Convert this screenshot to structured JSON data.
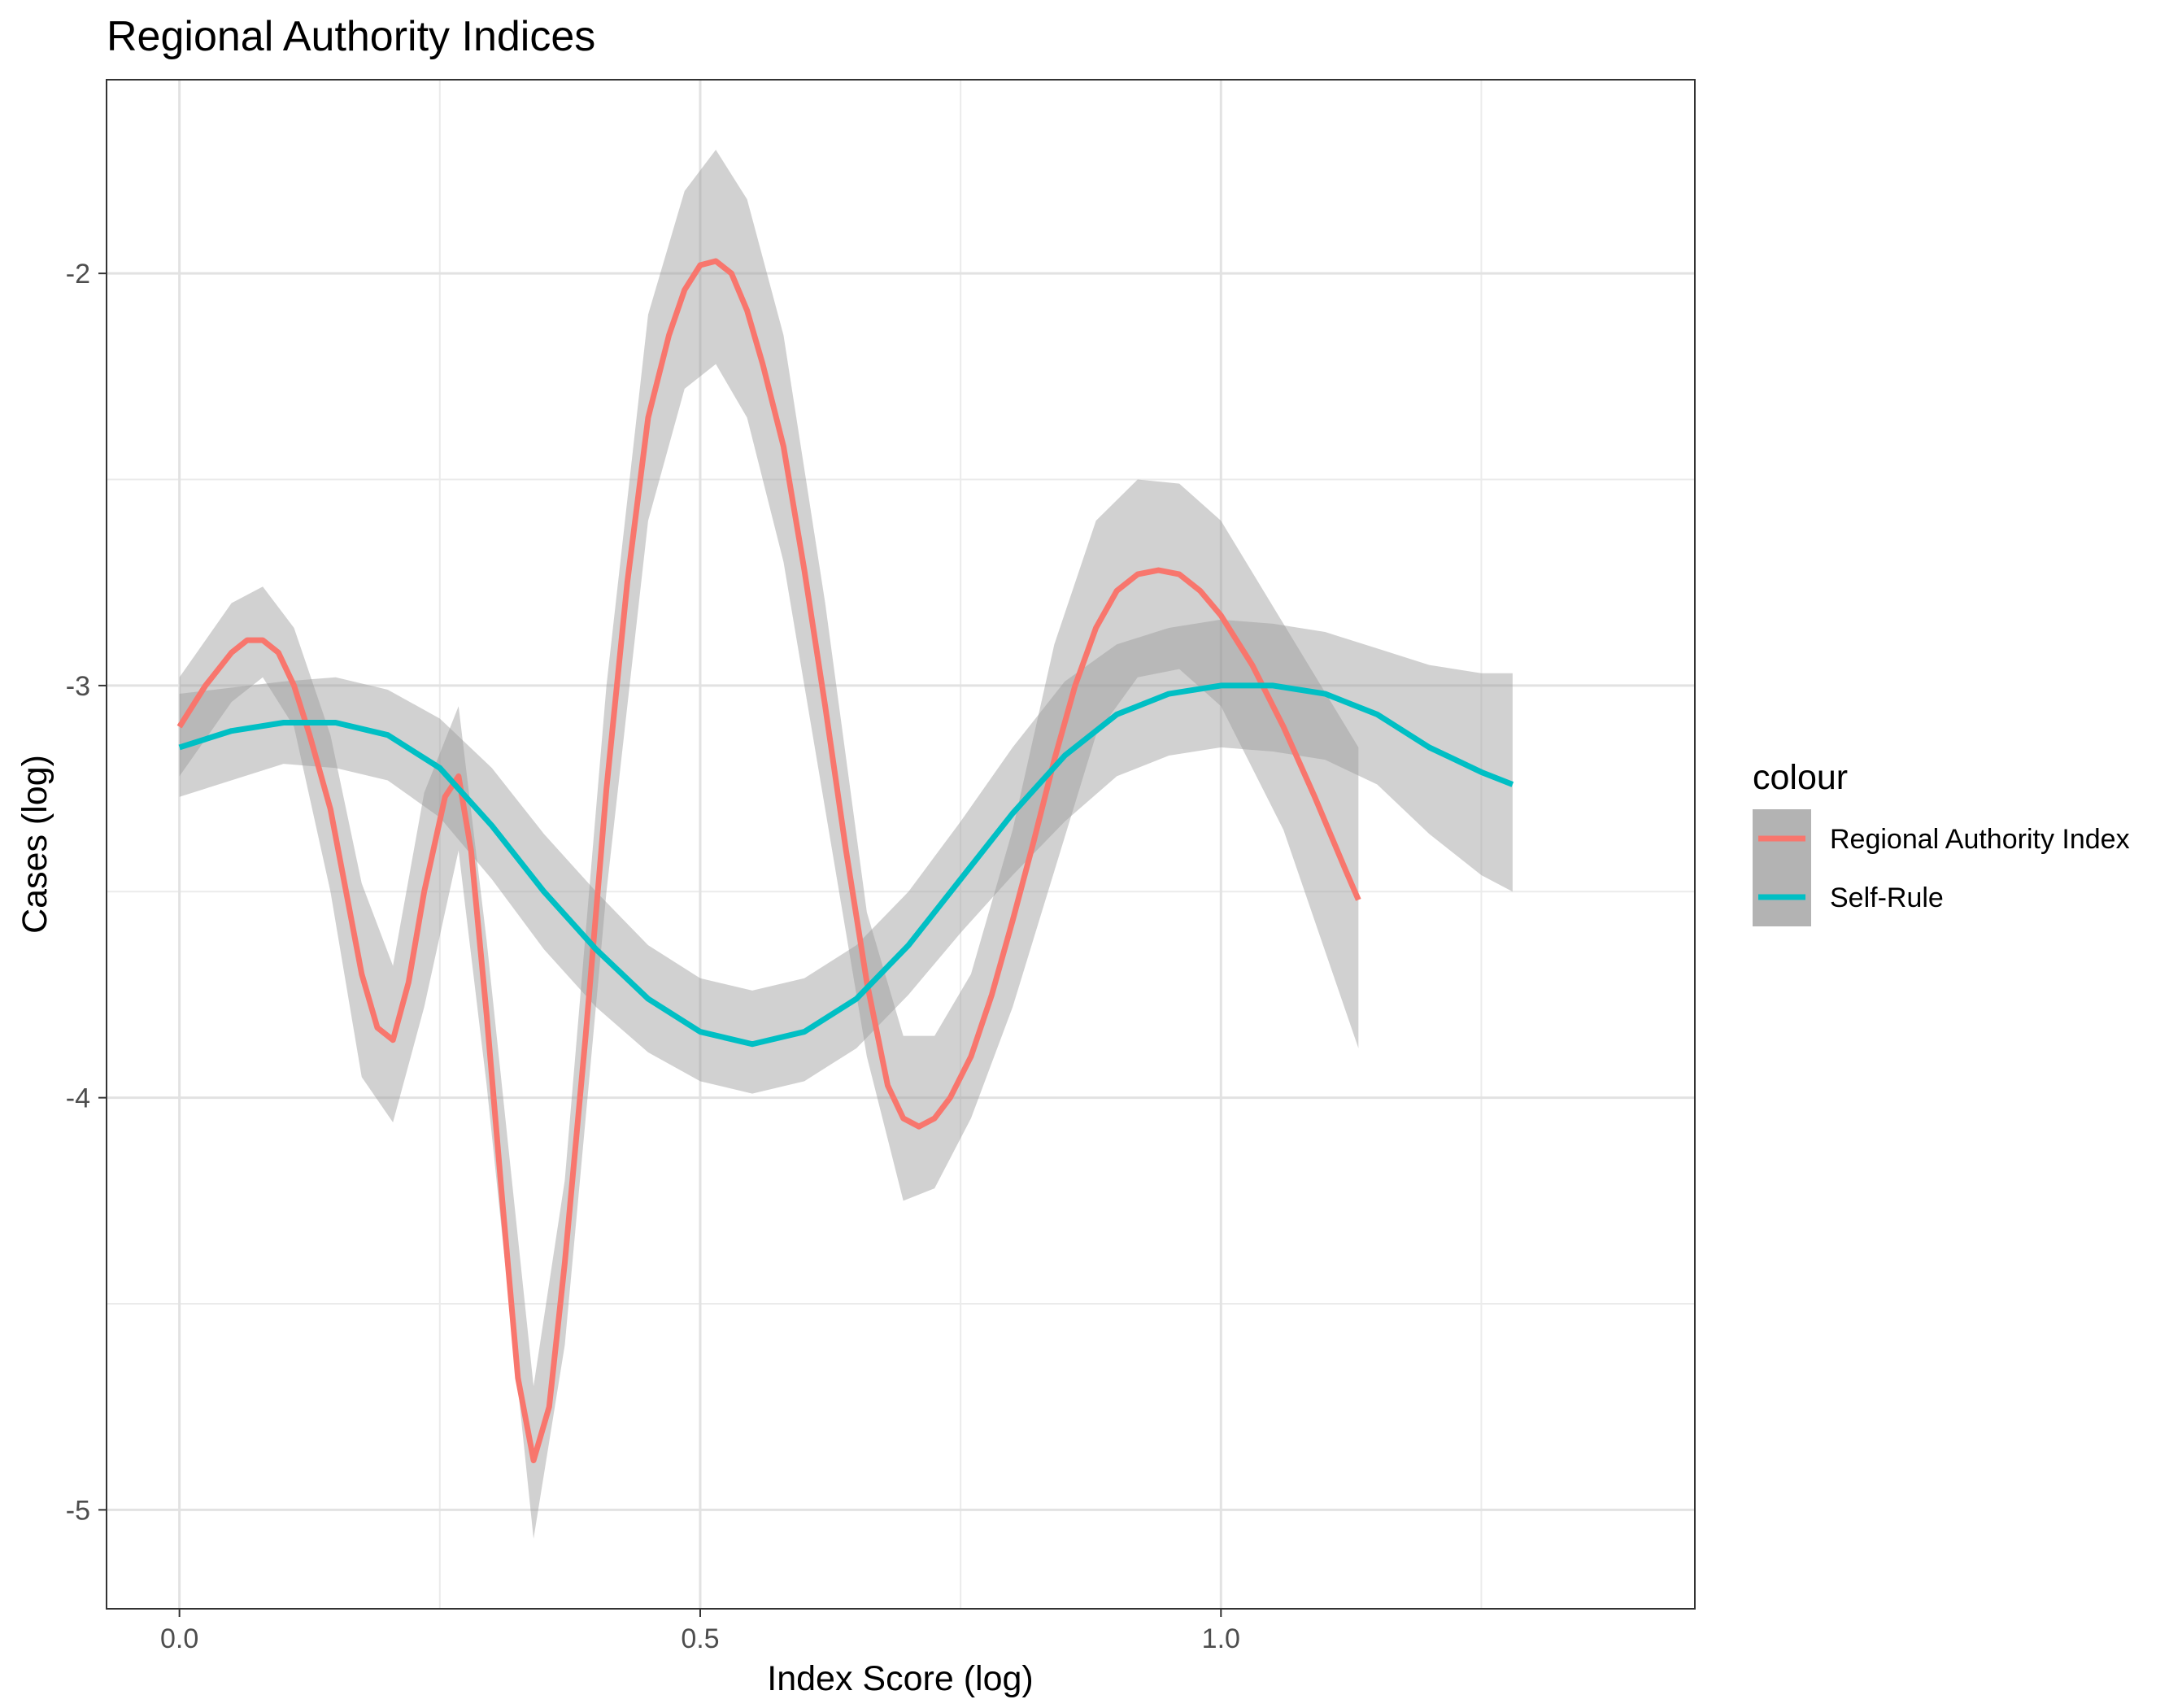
{
  "chart_data": {
    "type": "line",
    "title": "Regional Authority Indices",
    "xlabel": "Index Score (log)",
    "ylabel": "Cases (log)",
    "xlim": [
      -0.07,
      1.455
    ],
    "ylim": [
      -5.24,
      -1.53
    ],
    "x_ticks": [
      0.0,
      0.5,
      1.0
    ],
    "x_tick_labels": [
      "0.0",
      "0.5",
      "1.0"
    ],
    "y_ticks": [
      -5,
      -4,
      -3,
      -2
    ],
    "y_tick_labels": [
      "-5",
      "-4",
      "-3",
      "-2"
    ],
    "grid": true,
    "legend": {
      "title": "colour",
      "position": "right"
    },
    "series": [
      {
        "name": "Regional Authority Index",
        "color": "#F8766D",
        "points": [
          [
            0.0,
            -3.1
          ],
          [
            0.025,
            -3.0
          ],
          [
            0.05,
            -2.92
          ],
          [
            0.065,
            -2.89
          ],
          [
            0.08,
            -2.89
          ],
          [
            0.095,
            -2.92
          ],
          [
            0.11,
            -3.0
          ],
          [
            0.125,
            -3.12
          ],
          [
            0.145,
            -3.3
          ],
          [
            0.16,
            -3.5
          ],
          [
            0.175,
            -3.7
          ],
          [
            0.19,
            -3.83
          ],
          [
            0.205,
            -3.86
          ],
          [
            0.22,
            -3.72
          ],
          [
            0.235,
            -3.5
          ],
          [
            0.255,
            -3.27
          ],
          [
            0.268,
            -3.22
          ],
          [
            0.28,
            -3.4
          ],
          [
            0.295,
            -3.8
          ],
          [
            0.31,
            -4.25
          ],
          [
            0.325,
            -4.68
          ],
          [
            0.34,
            -4.88
          ],
          [
            0.355,
            -4.75
          ],
          [
            0.37,
            -4.4
          ],
          [
            0.39,
            -3.85
          ],
          [
            0.41,
            -3.25
          ],
          [
            0.43,
            -2.75
          ],
          [
            0.45,
            -2.35
          ],
          [
            0.47,
            -2.15
          ],
          [
            0.485,
            -2.04
          ],
          [
            0.5,
            -1.98
          ],
          [
            0.515,
            -1.97
          ],
          [
            0.53,
            -2.0
          ],
          [
            0.545,
            -2.09
          ],
          [
            0.56,
            -2.22
          ],
          [
            0.58,
            -2.42
          ],
          [
            0.6,
            -2.72
          ],
          [
            0.62,
            -3.05
          ],
          [
            0.64,
            -3.4
          ],
          [
            0.66,
            -3.72
          ],
          [
            0.68,
            -3.97
          ],
          [
            0.695,
            -4.05
          ],
          [
            0.71,
            -4.07
          ],
          [
            0.725,
            -4.05
          ],
          [
            0.74,
            -4.0
          ],
          [
            0.76,
            -3.9
          ],
          [
            0.78,
            -3.75
          ],
          [
            0.8,
            -3.57
          ],
          [
            0.82,
            -3.38
          ],
          [
            0.84,
            -3.18
          ],
          [
            0.86,
            -3.0
          ],
          [
            0.88,
            -2.86
          ],
          [
            0.9,
            -2.77
          ],
          [
            0.92,
            -2.73
          ],
          [
            0.94,
            -2.72
          ],
          [
            0.96,
            -2.73
          ],
          [
            0.98,
            -2.77
          ],
          [
            1.0,
            -2.83
          ],
          [
            1.03,
            -2.95
          ],
          [
            1.06,
            -3.1
          ],
          [
            1.09,
            -3.27
          ],
          [
            1.12,
            -3.45
          ],
          [
            1.132,
            -3.52
          ]
        ],
        "band": [
          [
            0.0,
            -3.22,
            -2.98
          ],
          [
            0.05,
            -3.04,
            -2.8
          ],
          [
            0.08,
            -2.98,
            -2.76
          ],
          [
            0.11,
            -3.1,
            -2.86
          ],
          [
            0.145,
            -3.5,
            -3.12
          ],
          [
            0.175,
            -3.95,
            -3.48
          ],
          [
            0.205,
            -4.06,
            -3.68
          ],
          [
            0.235,
            -3.78,
            -3.26
          ],
          [
            0.268,
            -3.4,
            -3.05
          ],
          [
            0.295,
            -3.97,
            -3.62
          ],
          [
            0.34,
            -5.07,
            -4.7
          ],
          [
            0.37,
            -4.6,
            -4.2
          ],
          [
            0.41,
            -3.5,
            -3.0
          ],
          [
            0.45,
            -2.6,
            -2.1
          ],
          [
            0.485,
            -2.28,
            -1.8
          ],
          [
            0.515,
            -2.22,
            -1.7
          ],
          [
            0.545,
            -2.35,
            -1.82
          ],
          [
            0.58,
            -2.7,
            -2.15
          ],
          [
            0.62,
            -3.3,
            -2.8
          ],
          [
            0.66,
            -3.9,
            -3.55
          ],
          [
            0.695,
            -4.25,
            -3.85
          ],
          [
            0.725,
            -4.22,
            -3.85
          ],
          [
            0.76,
            -4.05,
            -3.7
          ],
          [
            0.8,
            -3.78,
            -3.35
          ],
          [
            0.84,
            -3.45,
            -2.9
          ],
          [
            0.88,
            -3.12,
            -2.6
          ],
          [
            0.92,
            -2.98,
            -2.5
          ],
          [
            0.96,
            -2.96,
            -2.51
          ],
          [
            1.0,
            -3.05,
            -2.6
          ],
          [
            1.06,
            -3.35,
            -2.85
          ],
          [
            1.132,
            -3.88,
            -3.15
          ]
        ]
      },
      {
        "name": "Self-Rule",
        "color": "#00BFC4",
        "points": [
          [
            0.0,
            -3.15
          ],
          [
            0.05,
            -3.11
          ],
          [
            0.1,
            -3.09
          ],
          [
            0.15,
            -3.09
          ],
          [
            0.2,
            -3.12
          ],
          [
            0.25,
            -3.2
          ],
          [
            0.3,
            -3.34
          ],
          [
            0.35,
            -3.5
          ],
          [
            0.4,
            -3.64
          ],
          [
            0.45,
            -3.76
          ],
          [
            0.5,
            -3.84
          ],
          [
            0.55,
            -3.87
          ],
          [
            0.6,
            -3.84
          ],
          [
            0.65,
            -3.76
          ],
          [
            0.7,
            -3.63
          ],
          [
            0.75,
            -3.47
          ],
          [
            0.8,
            -3.31
          ],
          [
            0.85,
            -3.17
          ],
          [
            0.9,
            -3.07
          ],
          [
            0.95,
            -3.02
          ],
          [
            1.0,
            -3.0
          ],
          [
            1.05,
            -3.0
          ],
          [
            1.1,
            -3.02
          ],
          [
            1.15,
            -3.07
          ],
          [
            1.2,
            -3.15
          ],
          [
            1.25,
            -3.21
          ],
          [
            1.28,
            -3.24
          ]
        ],
        "band": [
          [
            0.0,
            -3.27,
            -3.02
          ],
          [
            0.1,
            -3.19,
            -2.99
          ],
          [
            0.15,
            -3.2,
            -2.98
          ],
          [
            0.2,
            -3.23,
            -3.01
          ],
          [
            0.25,
            -3.32,
            -3.08
          ],
          [
            0.3,
            -3.47,
            -3.2
          ],
          [
            0.35,
            -3.64,
            -3.36
          ],
          [
            0.4,
            -3.78,
            -3.5
          ],
          [
            0.45,
            -3.89,
            -3.63
          ],
          [
            0.5,
            -3.96,
            -3.71
          ],
          [
            0.55,
            -3.99,
            -3.74
          ],
          [
            0.6,
            -3.96,
            -3.71
          ],
          [
            0.65,
            -3.88,
            -3.63
          ],
          [
            0.7,
            -3.75,
            -3.5
          ],
          [
            0.75,
            -3.6,
            -3.33
          ],
          [
            0.8,
            -3.46,
            -3.15
          ],
          [
            0.85,
            -3.33,
            -2.99
          ],
          [
            0.9,
            -3.22,
            -2.9
          ],
          [
            0.95,
            -3.17,
            -2.86
          ],
          [
            1.0,
            -3.15,
            -2.84
          ],
          [
            1.05,
            -3.16,
            -2.85
          ],
          [
            1.1,
            -3.18,
            -2.87
          ],
          [
            1.15,
            -3.24,
            -2.91
          ],
          [
            1.2,
            -3.36,
            -2.95
          ],
          [
            1.25,
            -3.46,
            -2.97
          ],
          [
            1.28,
            -3.5,
            -2.97
          ]
        ]
      }
    ]
  }
}
